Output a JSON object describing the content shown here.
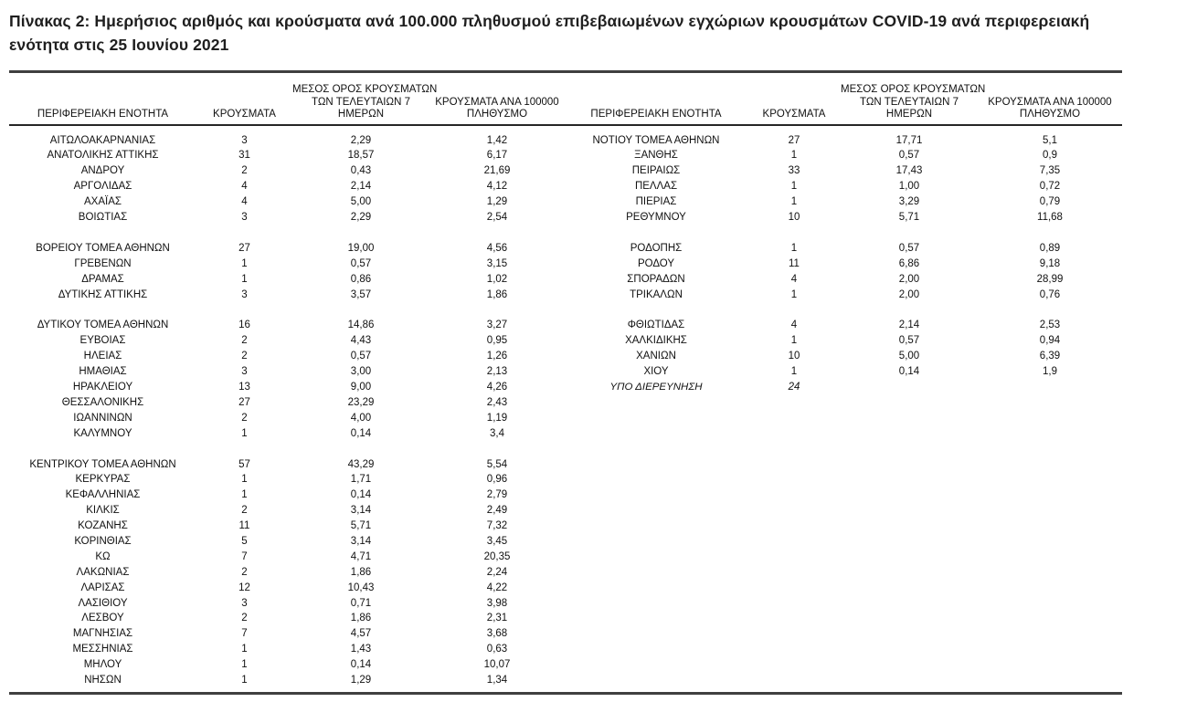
{
  "page": {
    "title": "Πίνακας 2:  Ημερήσιος αριθμός και κρούσματα ανά 100.000 πληθυσμού επιβεβαιωμένων εγχώριων κρουσμάτων COVID-19 ανά περιφερειακή ενότητα στις 25 Ιουνίου 2021"
  },
  "table": {
    "headers": {
      "region": "ΠΕΡΙΦΕΡΕΙΑΚΗ ΕΝΟΤΗΤΑ",
      "cases": "ΚΡΟΥΣΜΑΤΑ",
      "avg7_line1": "ΜΕΣΟΣ ΟΡΟΣ ΚΡΟΥΣΜΑΤΩΝ",
      "avg7_line2": "ΤΩΝ ΤΕΛΕΥΤΑΙΩΝ 7",
      "avg7_line3": "ΗΜΕΡΩΝ",
      "per100k_line1": "ΚΡΟΥΣΜΑΤΑ ΑΝΑ 100000",
      "per100k_line2": "ΠΛΗΘΥΣΜΟ"
    },
    "left_groups": [
      [
        {
          "region": "ΑΙΤΩΛΟΑΚΑΡΝΑΝΙΑΣ",
          "cases": "3",
          "avg7": "2,29",
          "per100k": "1,42"
        },
        {
          "region": "ΑΝΑΤΟΛΙΚΗΣ ΑΤΤΙΚΗΣ",
          "cases": "31",
          "avg7": "18,57",
          "per100k": "6,17"
        },
        {
          "region": "ΑΝΔΡΟΥ",
          "cases": "2",
          "avg7": "0,43",
          "per100k": "21,69"
        },
        {
          "region": "ΑΡΓΟΛΙΔΑΣ",
          "cases": "4",
          "avg7": "2,14",
          "per100k": "4,12"
        },
        {
          "region": "ΑΧΑΪΑΣ",
          "cases": "4",
          "avg7": "5,00",
          "per100k": "1,29"
        },
        {
          "region": "ΒΟΙΩΤΙΑΣ",
          "cases": "3",
          "avg7": "2,29",
          "per100k": "2,54"
        }
      ],
      [
        {
          "region": "ΒΟΡΕΙΟΥ ΤΟΜΕΑ ΑΘΗΝΩΝ",
          "cases": "27",
          "avg7": "19,00",
          "per100k": "4,56"
        },
        {
          "region": "ΓΡΕΒΕΝΩΝ",
          "cases": "1",
          "avg7": "0,57",
          "per100k": "3,15"
        },
        {
          "region": "ΔΡΑΜΑΣ",
          "cases": "1",
          "avg7": "0,86",
          "per100k": "1,02"
        },
        {
          "region": "ΔΥΤΙΚΗΣ ΑΤΤΙΚΗΣ",
          "cases": "3",
          "avg7": "3,57",
          "per100k": "1,86"
        }
      ],
      [
        {
          "region": "ΔΥΤΙΚΟΥ ΤΟΜΕΑ ΑΘΗΝΩΝ",
          "cases": "16",
          "avg7": "14,86",
          "per100k": "3,27"
        },
        {
          "region": "ΕΥΒΟΙΑΣ",
          "cases": "2",
          "avg7": "4,43",
          "per100k": "0,95"
        },
        {
          "region": "ΗΛΕΙΑΣ",
          "cases": "2",
          "avg7": "0,57",
          "per100k": "1,26"
        },
        {
          "region": "ΗΜΑΘΙΑΣ",
          "cases": "3",
          "avg7": "3,00",
          "per100k": "2,13"
        },
        {
          "region": "ΗΡΑΚΛΕΙΟΥ",
          "cases": "13",
          "avg7": "9,00",
          "per100k": "4,26"
        },
        {
          "region": "ΘΕΣΣΑΛΟΝΙΚΗΣ",
          "cases": "27",
          "avg7": "23,29",
          "per100k": "2,43"
        },
        {
          "region": "ΙΩΑΝΝΙΝΩΝ",
          "cases": "2",
          "avg7": "4,00",
          "per100k": "1,19"
        },
        {
          "region": "ΚΑΛΥΜΝΟΥ",
          "cases": "1",
          "avg7": "0,14",
          "per100k": "3,4"
        }
      ],
      [
        {
          "region": "ΚΕΝΤΡΙΚΟΥ ΤΟΜΕΑ ΑΘΗΝΩΝ",
          "cases": "57",
          "avg7": "43,29",
          "per100k": "5,54"
        },
        {
          "region": "ΚΕΡΚΥΡΑΣ",
          "cases": "1",
          "avg7": "1,71",
          "per100k": "0,96"
        },
        {
          "region": "ΚΕΦΑΛΛΗΝΙΑΣ",
          "cases": "1",
          "avg7": "0,14",
          "per100k": "2,79"
        },
        {
          "region": "ΚΙΛΚΙΣ",
          "cases": "2",
          "avg7": "3,14",
          "per100k": "2,49"
        },
        {
          "region": "ΚΟΖΑΝΗΣ",
          "cases": "11",
          "avg7": "5,71",
          "per100k": "7,32"
        },
        {
          "region": "ΚΟΡΙΝΘΙΑΣ",
          "cases": "5",
          "avg7": "3,14",
          "per100k": "3,45"
        },
        {
          "region": "ΚΩ",
          "cases": "7",
          "avg7": "4,71",
          "per100k": "20,35"
        },
        {
          "region": "ΛΑΚΩΝΙΑΣ",
          "cases": "2",
          "avg7": "1,86",
          "per100k": "2,24"
        },
        {
          "region": "ΛΑΡΙΣΑΣ",
          "cases": "12",
          "avg7": "10,43",
          "per100k": "4,22"
        },
        {
          "region": "ΛΑΣΙΘΙΟΥ",
          "cases": "3",
          "avg7": "0,71",
          "per100k": "3,98"
        },
        {
          "region": "ΛΕΣΒΟΥ",
          "cases": "2",
          "avg7": "1,86",
          "per100k": "2,31"
        },
        {
          "region": "ΜΑΓΝΗΣΙΑΣ",
          "cases": "7",
          "avg7": "4,57",
          "per100k": "3,68"
        },
        {
          "region": "ΜΕΣΣΗΝΙΑΣ",
          "cases": "1",
          "avg7": "1,43",
          "per100k": "0,63"
        },
        {
          "region": "ΜΗΛΟΥ",
          "cases": "1",
          "avg7": "0,14",
          "per100k": "10,07"
        },
        {
          "region": "ΝΗΣΩΝ",
          "cases": "1",
          "avg7": "1,29",
          "per100k": "1,34"
        }
      ]
    ],
    "right_groups": [
      [
        {
          "region": "ΝΟΤΙΟΥ ΤΟΜΕΑ ΑΘΗΝΩΝ",
          "cases": "27",
          "avg7": "17,71",
          "per100k": "5,1"
        },
        {
          "region": "ΞΑΝΘΗΣ",
          "cases": "1",
          "avg7": "0,57",
          "per100k": "0,9"
        },
        {
          "region": "ΠΕΙΡΑΙΩΣ",
          "cases": "33",
          "avg7": "17,43",
          "per100k": "7,35"
        },
        {
          "region": "ΠΕΛΛΑΣ",
          "cases": "1",
          "avg7": "1,00",
          "per100k": "0,72"
        },
        {
          "region": "ΠΙΕΡΙΑΣ",
          "cases": "1",
          "avg7": "3,29",
          "per100k": "0,79"
        },
        {
          "region": "ΡΕΘΥΜΝΟΥ",
          "cases": "10",
          "avg7": "5,71",
          "per100k": "11,68"
        }
      ],
      [
        {
          "region": "ΡΟΔΟΠΗΣ",
          "cases": "1",
          "avg7": "0,57",
          "per100k": "0,89"
        },
        {
          "region": "ΡΟΔΟΥ",
          "cases": "11",
          "avg7": "6,86",
          "per100k": "9,18"
        },
        {
          "region": "ΣΠΟΡΑΔΩΝ",
          "cases": "4",
          "avg7": "2,00",
          "per100k": "28,99"
        },
        {
          "region": "ΤΡΙΚΑΛΩΝ",
          "cases": "1",
          "avg7": "2,00",
          "per100k": "0,76"
        }
      ],
      [
        {
          "region": "ΦΘΙΩΤΙΔΑΣ",
          "cases": "4",
          "avg7": "2,14",
          "per100k": "2,53"
        },
        {
          "region": "ΧΑΛΚΙΔΙΚΗΣ",
          "cases": "1",
          "avg7": "0,57",
          "per100k": "0,94"
        },
        {
          "region": "ΧΑΝΙΩΝ",
          "cases": "10",
          "avg7": "5,00",
          "per100k": "6,39"
        },
        {
          "region": "ΧΙΟΥ",
          "cases": "1",
          "avg7": "0,14",
          "per100k": "1,9"
        },
        {
          "region": "ΥΠΟ ΔΙΕΡΕΥΝΗΣΗ",
          "cases": "24",
          "avg7": "",
          "per100k": "",
          "italic": true
        }
      ]
    ]
  }
}
